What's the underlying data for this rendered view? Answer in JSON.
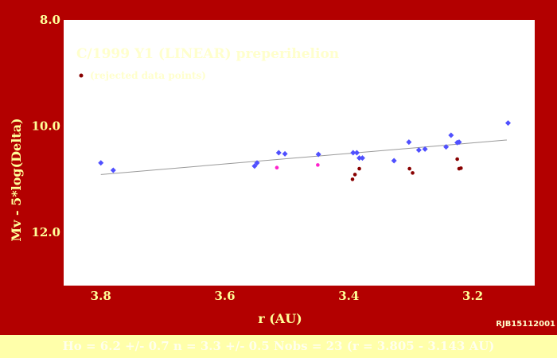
{
  "chart_data": {
    "type": "scatter",
    "title": "C/1999 Y1 (LINEAR) preperihelion",
    "xlabel": "r (AU)",
    "ylabel": "Mv - 5*log(Delta)",
    "xlim": [
      3.86,
      3.1
    ],
    "ylim": [
      8.0,
      13.0
    ],
    "x_ticks": [
      "3.8",
      "3.6",
      "3.4",
      "3.2"
    ],
    "y_ticks": [
      "8.0",
      "10.0",
      "12.0"
    ],
    "grid": false,
    "legend_position": "top-left",
    "legend_label": "(rejected data points)",
    "colors": {
      "background": "#b30000",
      "plot_bg": "#ffffff",
      "accepted": "#5050ff",
      "rejected": "#880000",
      "highlight": "#ff22cc",
      "fit": "#999999",
      "text": "#ffff99"
    },
    "series": [
      {
        "name": "accepted",
        "marker": "diamond",
        "points": [
          [
            3.8,
            10.69
          ],
          [
            3.78,
            10.83
          ],
          [
            3.552,
            10.75
          ],
          [
            3.548,
            10.69
          ],
          [
            3.513,
            10.5
          ],
          [
            3.503,
            10.52
          ],
          [
            3.449,
            10.53
          ],
          [
            3.393,
            10.5
          ],
          [
            3.387,
            10.5
          ],
          [
            3.383,
            10.6
          ],
          [
            3.378,
            10.6
          ],
          [
            3.327,
            10.65
          ],
          [
            3.303,
            10.3
          ],
          [
            3.287,
            10.45
          ],
          [
            3.277,
            10.43
          ],
          [
            3.243,
            10.39
          ],
          [
            3.235,
            10.17
          ],
          [
            3.225,
            10.31
          ],
          [
            3.222,
            10.3
          ],
          [
            3.143,
            9.94
          ]
        ]
      },
      {
        "name": "highlighted",
        "marker": "dot",
        "points": [
          [
            3.516,
            10.78
          ],
          [
            3.45,
            10.73
          ]
        ]
      },
      {
        "name": "rejected",
        "marker": "dot",
        "points": [
          [
            3.394,
            11.0
          ],
          [
            3.39,
            10.91
          ],
          [
            3.383,
            10.8
          ],
          [
            3.302,
            10.8
          ],
          [
            3.297,
            10.88
          ],
          [
            3.225,
            10.62
          ],
          [
            3.222,
            10.8
          ],
          [
            3.219,
            10.79
          ]
        ]
      }
    ],
    "fit_line": {
      "x": [
        3.8,
        3.145
      ],
      "y": [
        10.91,
        10.26
      ]
    }
  },
  "credit": "RJB15112001",
  "footer": "Ho = 6.2 +/- 0.7   n = 3.3 +/- 0.5   Nobs = 23   (r = 3.805 - 3.143 AU)"
}
